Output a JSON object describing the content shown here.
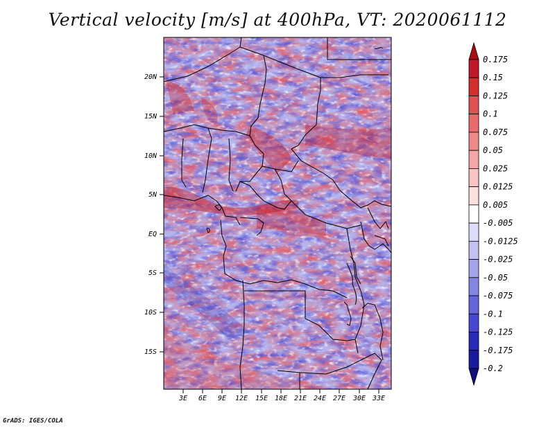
{
  "title": "Vertical velocity [m/s] at 400hPa, VT: 2020061112",
  "credit": "GrADS: IGES/COLA",
  "map": {
    "lat_ticks": [
      "20N",
      "15N",
      "10N",
      "5N",
      "EQ",
      "5S",
      "10S",
      "15S"
    ],
    "lon_ticks": [
      "3E",
      "6E",
      "9E",
      "12E",
      "15E",
      "18E",
      "21E",
      "24E",
      "27E",
      "30E",
      "33E"
    ],
    "lat_range": [
      -19,
      25
    ],
    "lon_range": [
      0.5,
      35
    ]
  },
  "colorbar": {
    "labels": [
      "0.175",
      "0.15",
      "0.125",
      "0.1",
      "0.075",
      "0.05",
      "0.025",
      "0.0125",
      "0.005",
      "-0.005",
      "-0.0125",
      "-0.025",
      "-0.05",
      "-0.075",
      "-0.1",
      "-0.125",
      "-0.175",
      "-0.2"
    ],
    "colors": [
      "#a50f15",
      "#c0192a",
      "#d32f2f",
      "#e05252",
      "#e86a6a",
      "#ef8a8a",
      "#f4a6a6",
      "#f8c4c4",
      "#fbe0e0",
      "#ffffff",
      "#dcdcf8",
      "#c2c2f2",
      "#a4a4ec",
      "#8484e4",
      "#6565dc",
      "#4646d0",
      "#2a2ab8",
      "#1a1a9c",
      "#10107a"
    ]
  }
}
